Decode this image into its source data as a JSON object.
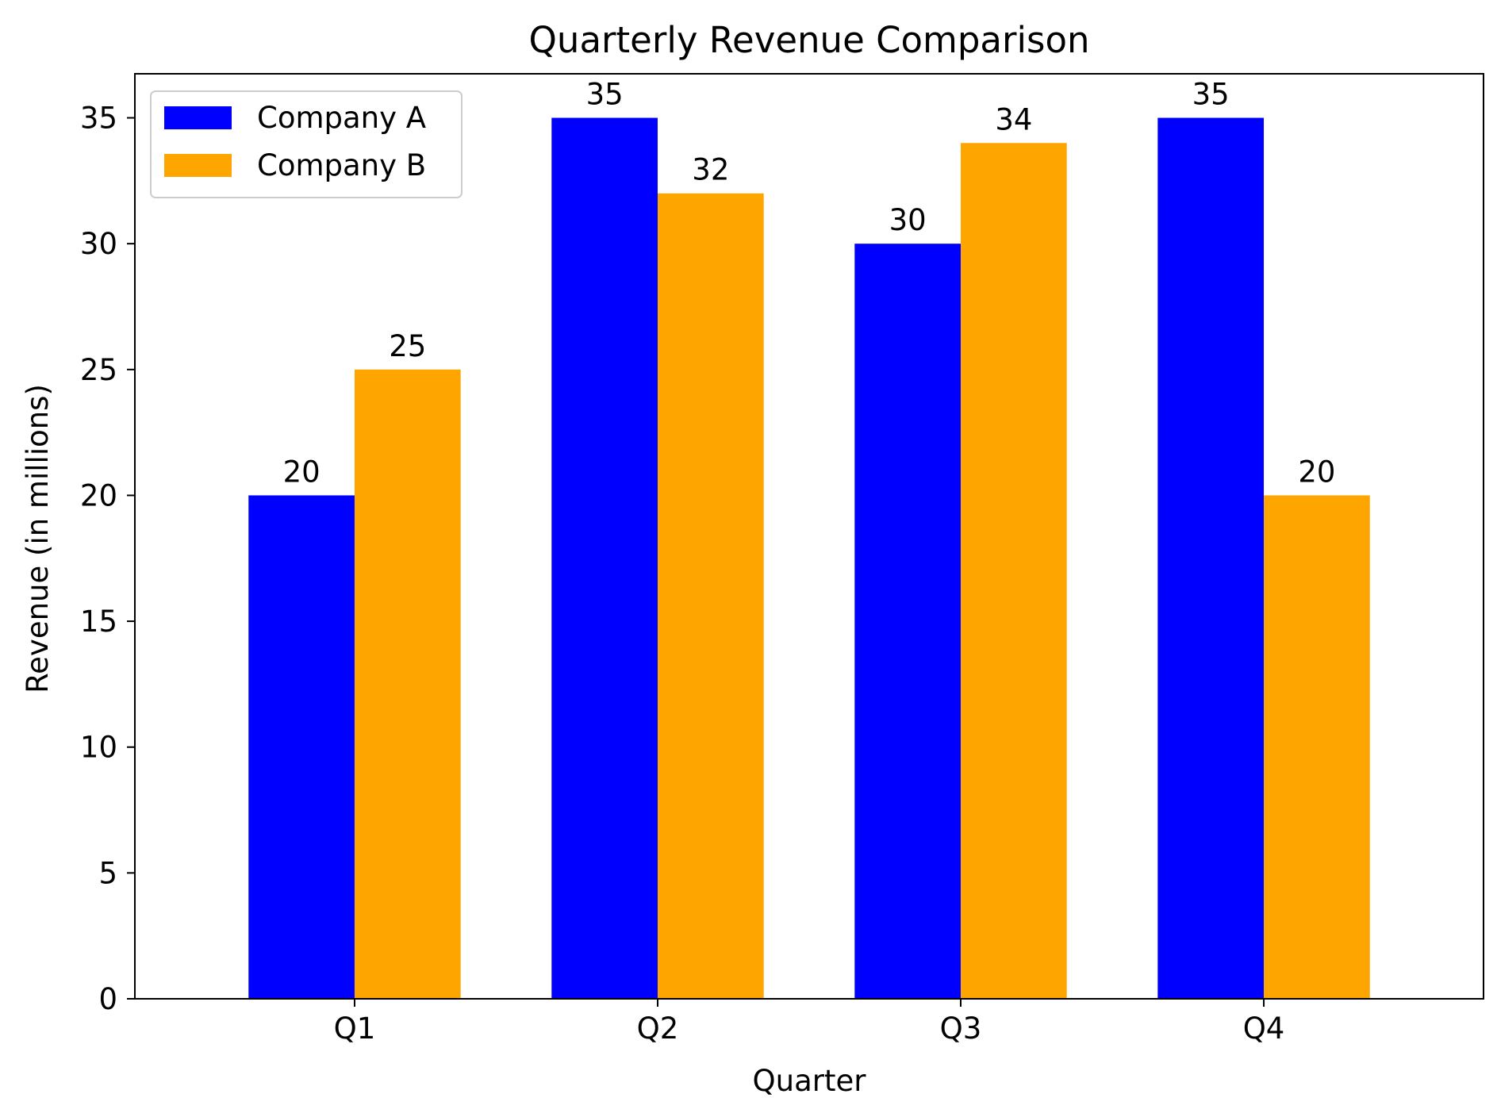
{
  "chart_data": {
    "type": "bar",
    "title": "Quarterly Revenue Comparison",
    "xlabel": "Quarter",
    "ylabel": "Revenue (in millions)",
    "categories": [
      "Q1",
      "Q2",
      "Q3",
      "Q4"
    ],
    "series": [
      {
        "name": "Company A",
        "color": "#0000ff",
        "values": [
          20,
          35,
          30,
          35
        ]
      },
      {
        "name": "Company B",
        "color": "#ffa500",
        "values": [
          25,
          32,
          34,
          20
        ]
      }
    ],
    "ylim": [
      0,
      36.75
    ],
    "yticks": [
      0,
      5,
      10,
      15,
      20,
      25,
      30,
      35
    ],
    "grid": false,
    "legend_position": "top-left",
    "data_labels": true
  }
}
